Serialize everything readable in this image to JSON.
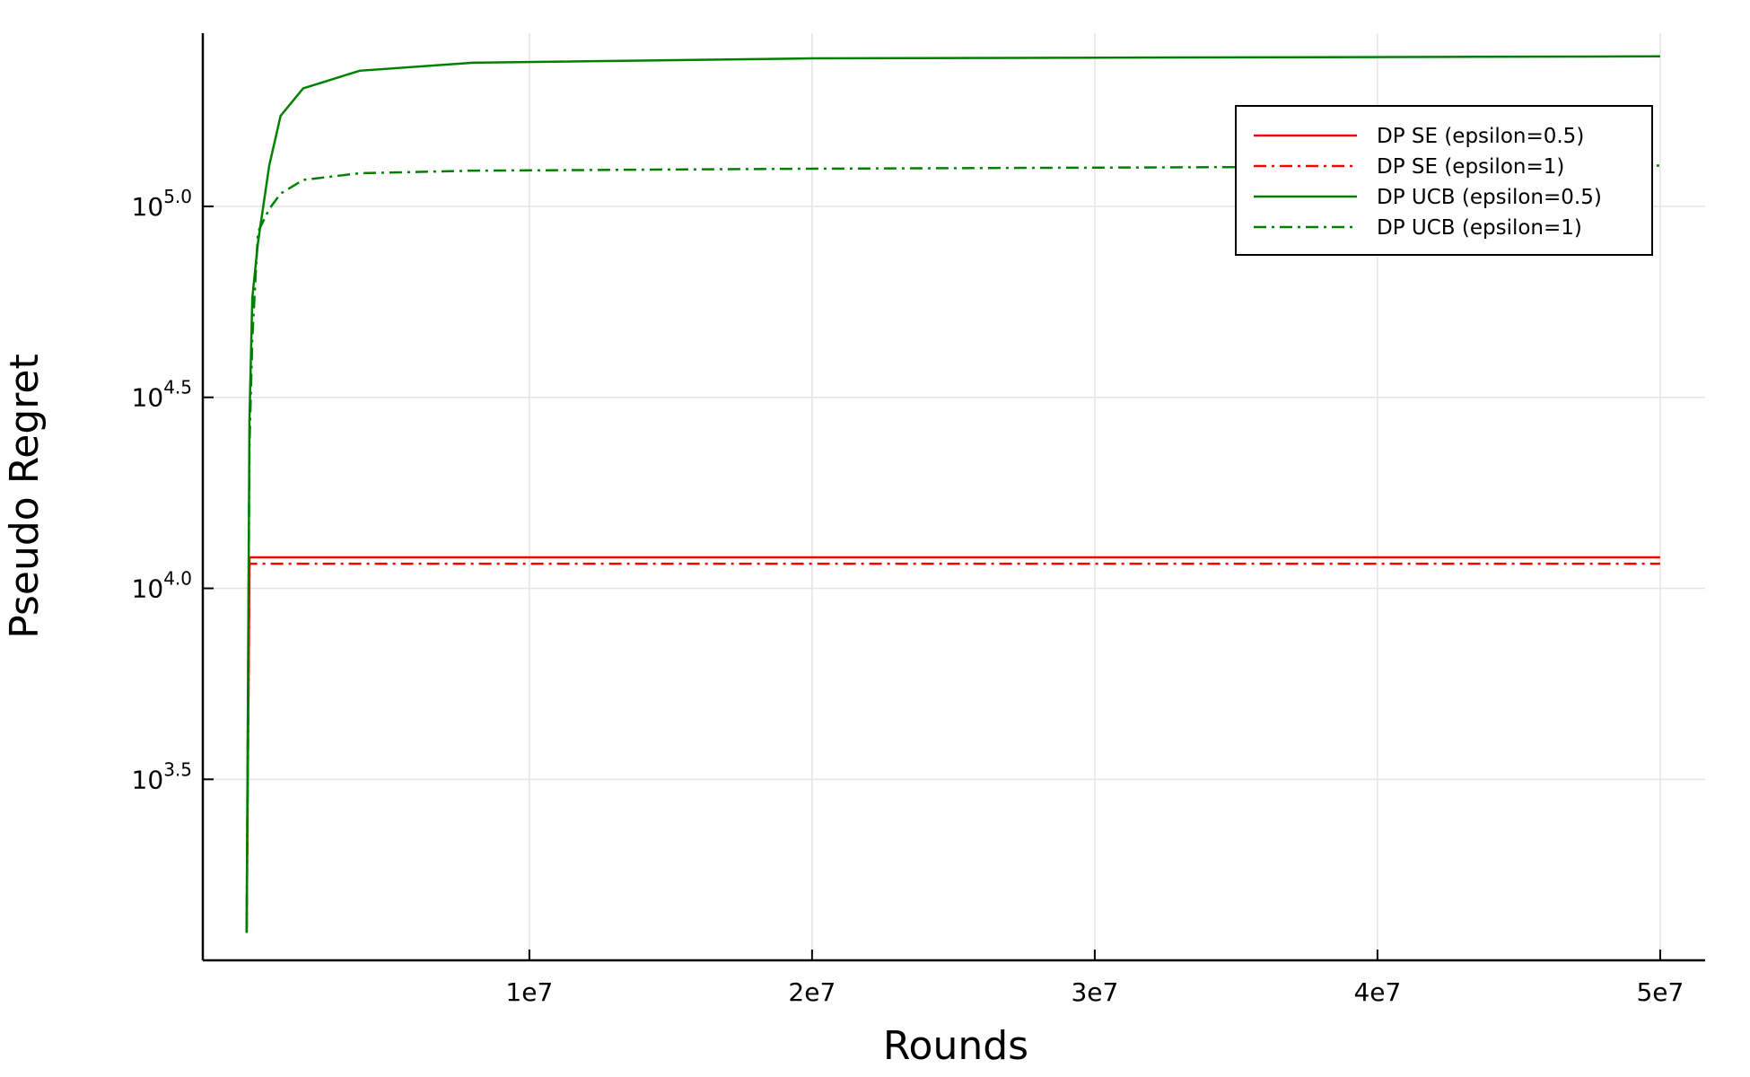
{
  "chart_data": {
    "type": "line",
    "x_label": "Rounds",
    "y_label": "Pseudo Regret",
    "x": [
      0,
      100000,
      200000,
      400000,
      800000,
      1200000,
      2000000,
      4000000,
      8000000,
      20000000,
      50000000
    ],
    "series": [
      {
        "name": "DP SE (epsilon=0.5)",
        "color": "#ff0000",
        "dash": "solid",
        "values": [
          1253,
          12050,
          12050,
          12050,
          12050,
          12050,
          12050,
          12050,
          12050,
          12050,
          12050
        ]
      },
      {
        "name": "DP SE (epsilon=1)",
        "color": "#ff0000",
        "dash": "dashdot",
        "values": [
          1253,
          11600,
          11600,
          11600,
          11600,
          11600,
          11600,
          11600,
          11600,
          11600,
          11600
        ]
      },
      {
        "name": "DP UCB (epsilon=0.5)",
        "color": "#008000",
        "dash": "solid",
        "values": [
          1253,
          27700,
          57500,
          80300,
          128000,
          172500,
          203700,
          226500,
          237700,
          244000,
          247000
        ]
      },
      {
        "name": "DP UCB (epsilon=1)",
        "color": "#008000",
        "dash": "dashdot",
        "values": [
          1253,
          23400,
          45000,
          85700,
          98400,
          108000,
          117300,
          122100,
          124000,
          125500,
          127900
        ]
      }
    ],
    "xlim": [
      -1550000,
      51590000
    ],
    "xticks": [
      {
        "value": 10000000,
        "label": "1e7"
      },
      {
        "value": 20000000,
        "label": "2e7"
      },
      {
        "value": 30000000,
        "label": "3e7"
      },
      {
        "value": 40000000,
        "label": "4e7"
      },
      {
        "value": 50000000,
        "label": "5e7"
      }
    ],
    "ylim": [
      1062,
      284000
    ],
    "log_y": true,
    "yticks": [
      {
        "value": 3162.28,
        "label": "10^3.5"
      },
      {
        "value": 10000,
        "label": "10^4.0"
      },
      {
        "value": 31622.8,
        "label": "10^4.5"
      },
      {
        "value": 100000,
        "label": "10^5.0"
      }
    ],
    "grid": true,
    "legend": "top-right"
  }
}
